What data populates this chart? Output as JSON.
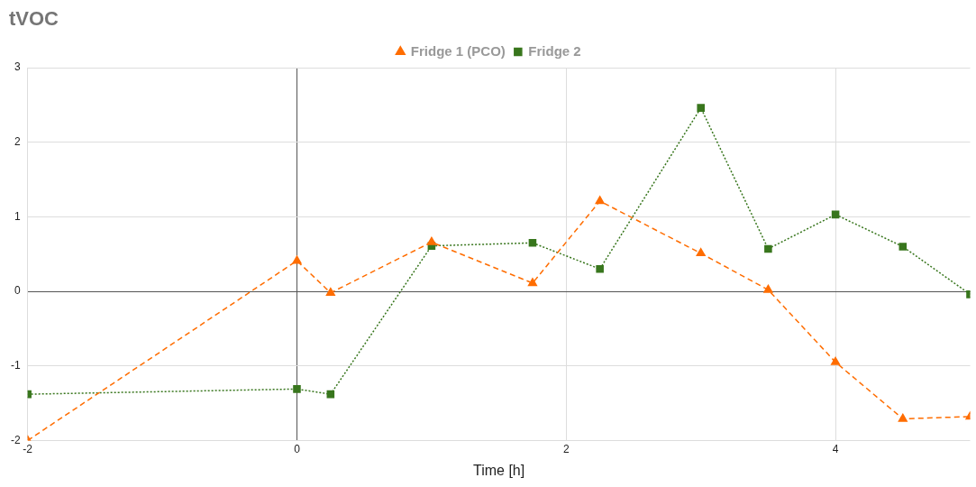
{
  "chart_data": {
    "type": "line",
    "title": "tVOC",
    "xlabel": "Time [h]",
    "x": [
      -2,
      0,
      0.25,
      1,
      1.75,
      2.25,
      3,
      3.5,
      4,
      4.5,
      5
    ],
    "series": [
      {
        "name": "Fridge 1 (PCO)",
        "color": "#ff6d01",
        "marker": "triangle",
        "line_style": "dashed",
        "values": [
          -2.0,
          0.41,
          -0.02,
          0.66,
          0.11,
          1.21,
          0.51,
          0.02,
          -0.95,
          -1.71,
          -1.68
        ]
      },
      {
        "name": "Fridge 2",
        "color": "#38761d",
        "marker": "square",
        "line_style": "dotted",
        "values": [
          -1.38,
          -1.31,
          -1.38,
          0.61,
          0.65,
          0.3,
          2.46,
          0.57,
          1.03,
          0.6,
          -0.04
        ]
      }
    ],
    "xlim": [
      -2,
      5
    ],
    "xticks": [
      -2,
      0,
      2,
      4
    ],
    "ylim": [
      -2,
      3
    ],
    "yticks": [
      -2,
      -1,
      0,
      1,
      2,
      3
    ],
    "grid": true,
    "legend": "top"
  }
}
